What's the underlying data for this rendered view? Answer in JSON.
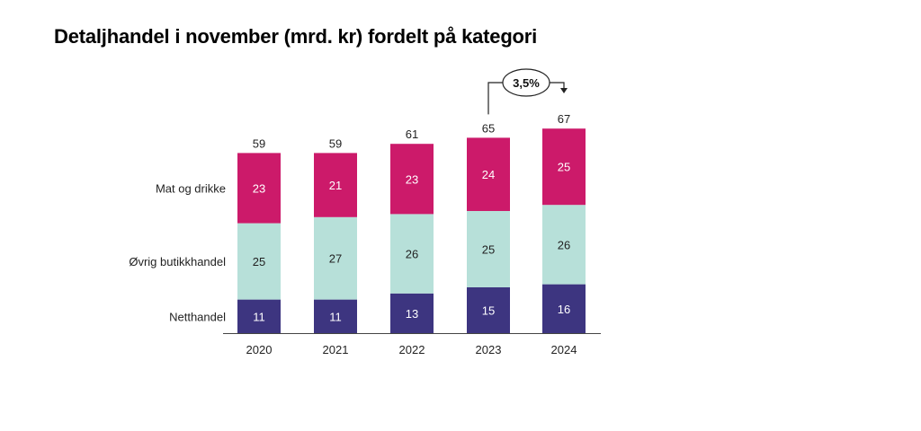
{
  "title": "Detaljhandel i november (mrd. kr) fordelt på kategori",
  "chart_data": {
    "type": "bar",
    "stacked": true,
    "categories": [
      "2020",
      "2021",
      "2022",
      "2023",
      "2024"
    ],
    "series": [
      {
        "name": "Netthandel",
        "values": [
          11,
          11,
          13,
          15,
          16
        ],
        "color": "#3d3580",
        "label_color": "#ffffff"
      },
      {
        "name": "Øvrig butikkhandel",
        "values": [
          25,
          27,
          26,
          25,
          26
        ],
        "color": "#b7e0d9",
        "label_color": "#222222"
      },
      {
        "name": "Mat og drikke",
        "values": [
          23,
          21,
          23,
          24,
          25
        ],
        "color": "#cc1a6a",
        "label_color": "#ffffff"
      }
    ],
    "totals": [
      59,
      59,
      61,
      65,
      67
    ],
    "annotation": {
      "text": "3,5%",
      "from": "2023",
      "to": "2024"
    },
    "legend_position": "left",
    "grid": false
  }
}
